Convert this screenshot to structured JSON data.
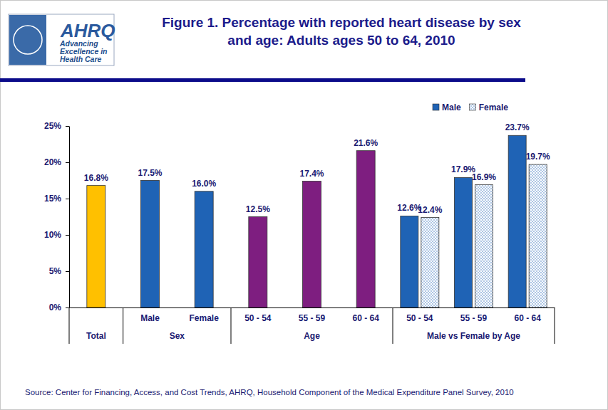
{
  "chart_data": {
    "type": "bar",
    "title": "Figure 1. Percentage with reported heart disease by sex and age: Adults ages 50 to 64, 2010",
    "logo": [
      "AHRQ",
      "Advancing",
      "Excellence in",
      "Health Care"
    ],
    "source": "Source: Center for Financing, Access, and Cost Trends, AHRQ, Household Component of the Medical Expenditure Panel Survey,  2010",
    "categories": [
      null,
      "Male",
      "Female",
      "50 - 54",
      "55 - 59",
      "60 - 64",
      "50 - 54",
      "55 - 59",
      "60 - 64"
    ],
    "groups": [
      {
        "label": "Total",
        "size": 1
      },
      {
        "label": "Sex",
        "size": 2
      },
      {
        "label": "Age",
        "size": 3
      },
      {
        "label": "Male vs Female by Age",
        "size": 3
      }
    ],
    "values": [
      16.8,
      17.5,
      16.0,
      12.5,
      17.4,
      21.6,
      null,
      null,
      null
    ],
    "value_labels": [
      "16.8%",
      "17.5%",
      "16.0%",
      "12.5%",
      "17.4%",
      "21.6%",
      null,
      null,
      null
    ],
    "colors": [
      "#FFC000",
      "#1F63B5",
      "#1F63B5",
      "#7E1E80",
      "#7E1E80",
      "#7E1E80",
      null,
      null,
      null
    ],
    "series": [
      {
        "name": "Male",
        "color": "#1F63B5",
        "values": [
          null,
          null,
          null,
          null,
          null,
          null,
          12.6,
          17.9,
          23.7
        ],
        "value_labels": [
          null,
          null,
          null,
          null,
          null,
          null,
          "12.6%",
          "17.9%",
          "23.7%"
        ]
      },
      {
        "name": "Female",
        "color": "#1F63B5",
        "values": [
          null,
          null,
          null,
          null,
          null,
          null,
          12.4,
          16.9,
          19.7
        ],
        "value_labels": [
          null,
          null,
          null,
          null,
          null,
          null,
          "12.4%",
          "16.9%",
          "19.7%"
        ]
      }
    ],
    "ylim": [
      0,
      25
    ],
    "yticks": [
      {
        "value": 0,
        "label": "0%"
      },
      {
        "value": 5,
        "label": "5%"
      },
      {
        "value": 10,
        "label": "10%"
      },
      {
        "value": 15,
        "label": "15%"
      },
      {
        "value": 20,
        "label": "20%"
      },
      {
        "value": 25,
        "label": "25%"
      }
    ],
    "grid": false,
    "legend": "top right",
    "data_labels": true
  }
}
